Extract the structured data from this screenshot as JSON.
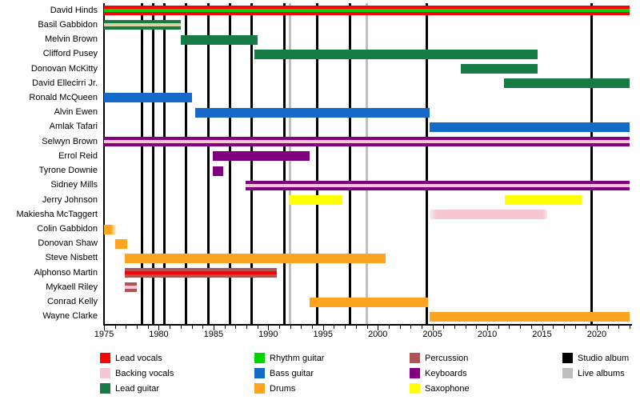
{
  "chart_data": {
    "type": "bar",
    "subtype": "band-member-timeline",
    "title": "",
    "x_axis": {
      "start": 1975,
      "end": 2023,
      "major_tick_years": [
        1975,
        1980,
        1985,
        1990,
        1995,
        2000,
        2005,
        2010,
        2015,
        2020
      ],
      "tick_labels": [
        "1975",
        "1980",
        "1985",
        "1990",
        "1995",
        "2000",
        "2005",
        "2010",
        "2015",
        "2020"
      ],
      "minor_tick_every_years": 1
    },
    "members": [
      {
        "name": "David Hinds",
        "roles": [
          "Lead vocals",
          "Rhythm guitar"
        ],
        "segments": [
          {
            "start": 1975,
            "end": 2023,
            "color": "#FF0000",
            "stripe": "#00D400"
          }
        ]
      },
      {
        "name": "Basil Gabbidon",
        "roles": [
          "Lead guitar",
          "Vocals"
        ],
        "segments": [
          {
            "start": 1975,
            "end": 1982,
            "color": "#177B45",
            "stripe": "#DBD2A4"
          }
        ]
      },
      {
        "name": "Melvin Brown",
        "roles": [
          "Lead guitar"
        ],
        "segments": [
          {
            "start": 1982,
            "end": 1989,
            "color": "#177B45"
          }
        ]
      },
      {
        "name": "Clifford Pusey",
        "roles": [
          "Lead guitar"
        ],
        "segments": [
          {
            "start": 1988.7,
            "end": 2014.6,
            "color": "#177B45"
          }
        ]
      },
      {
        "name": "Donovan McKitty",
        "roles": [
          "Lead guitar"
        ],
        "segments": [
          {
            "start": 2007.6,
            "end": 2014.6,
            "color": "#177B45"
          }
        ]
      },
      {
        "name": "David Ellecirri Jr.",
        "roles": [
          "Lead guitar"
        ],
        "segments": [
          {
            "start": 2011.5,
            "end": 2023,
            "color": "#177B45"
          }
        ]
      },
      {
        "name": "Ronald McQueen",
        "roles": [
          "Bass guitar"
        ],
        "segments": [
          {
            "start": 1975,
            "end": 1983,
            "color": "#1569C8"
          }
        ]
      },
      {
        "name": "Alvin Ewen",
        "roles": [
          "Bass guitar"
        ],
        "segments": [
          {
            "start": 1983.3,
            "end": 2004.7,
            "color": "#1569C8"
          }
        ]
      },
      {
        "name": "Amlak Tafari",
        "roles": [
          "Bass guitar"
        ],
        "segments": [
          {
            "start": 2004.7,
            "end": 2023,
            "color": "#1569C8"
          }
        ]
      },
      {
        "name": "Selwyn Brown",
        "roles": [
          "Keyboards",
          "Backing vocals"
        ],
        "segments": [
          {
            "start": 1975,
            "end": 2023,
            "color": "#800080",
            "stripe": "#F6C6D2"
          }
        ]
      },
      {
        "name": "Errol Reid",
        "roles": [
          "Keyboards"
        ],
        "segments": [
          {
            "start": 1984.9,
            "end": 1993.8,
            "color": "#800080"
          }
        ]
      },
      {
        "name": "Tyrone Downie",
        "roles": [
          "Keyboards"
        ],
        "segments": [
          {
            "start": 1984.9,
            "end": 1985.9,
            "color": "#800080"
          }
        ]
      },
      {
        "name": "Sidney Mills",
        "roles": [
          "Keyboards",
          "Backing vocals"
        ],
        "segments": [
          {
            "start": 1987.9,
            "end": 2023,
            "color": "#800080",
            "stripe": "#F6C6D2"
          }
        ]
      },
      {
        "name": "Jerry Johnson",
        "roles": [
          "Saxophone"
        ],
        "segments": [
          {
            "start": 1991.9,
            "end": 1996.8,
            "color": "#FFFF00"
          },
          {
            "start": 2011.6,
            "end": 2018.6,
            "color": "#FFFF00"
          }
        ]
      },
      {
        "name": "Makiesha McTaggert",
        "roles": [
          "Backing vocals"
        ],
        "segments": [
          {
            "start": 2004.7,
            "end": 2015.5,
            "color": "#F6C6D2",
            "fade": "left"
          }
        ]
      },
      {
        "name": "Colin Gabbidon",
        "roles": [
          "Drums"
        ],
        "segments": [
          {
            "start": 1975,
            "end": 1976.2,
            "color": "#FFA41E",
            "fade": "right"
          }
        ]
      },
      {
        "name": "Donovan Shaw",
        "roles": [
          "Drums"
        ],
        "segments": [
          {
            "start": 1976,
            "end": 1977.1,
            "color": "#FFA41E"
          }
        ]
      },
      {
        "name": "Steve Nisbett",
        "roles": [
          "Drums"
        ],
        "segments": [
          {
            "start": 1976.9,
            "end": 2000.7,
            "color": "#FFA41E"
          }
        ]
      },
      {
        "name": "Alphonso Martin",
        "roles": [
          "Percussion",
          "Vocals"
        ],
        "segments": [
          {
            "start": 1976.9,
            "end": 1990.8,
            "color": "#B05555",
            "stripe": "#FF0000"
          }
        ]
      },
      {
        "name": "Mykaell Riley",
        "roles": [
          "Percussion",
          "Backing vocals"
        ],
        "segments": [
          {
            "start": 1976.9,
            "end": 1978,
            "color": "#B05555",
            "stripe": "#F6C6D2"
          }
        ]
      },
      {
        "name": "Conrad Kelly",
        "roles": [
          "Drums"
        ],
        "segments": [
          {
            "start": 1993.8,
            "end": 2004.6,
            "color": "#FFA41E"
          }
        ]
      },
      {
        "name": "Wayne Clarke",
        "roles": [
          "Drums"
        ],
        "segments": [
          {
            "start": 2004.7,
            "end": 2023,
            "color": "#FFA41E"
          }
        ]
      }
    ],
    "albums": {
      "studio_years": [
        1978,
        1979,
        1980,
        1982,
        1984,
        1986,
        1988,
        1991,
        1994,
        1997,
        2004,
        2019
      ],
      "live_years": [
        1992,
        1999
      ]
    },
    "legend": {
      "columns": [
        [
          {
            "label": "Lead vocals",
            "color": "#FF0000"
          },
          {
            "label": "Backing vocals",
            "color": "#F6C6D2"
          },
          {
            "label": "Lead guitar",
            "color": "#177B45"
          }
        ],
        [
          {
            "label": "Rhythm guitar",
            "color": "#00D400"
          },
          {
            "label": "Bass guitar",
            "color": "#1569C8"
          },
          {
            "label": "Drums",
            "color": "#FFA41E"
          }
        ],
        [
          {
            "label": "Percussion",
            "color": "#B05555"
          },
          {
            "label": "Keyboards",
            "color": "#800080"
          },
          {
            "label": "Saxophone",
            "color": "#FFFF00"
          }
        ],
        [
          {
            "label": "Studio album",
            "color": "#000000"
          },
          {
            "label": "Live albums",
            "color": "#BFBFBF"
          }
        ]
      ]
    },
    "colors": {
      "studio_album_line": "#000000",
      "live_album_line": "#BFBFBF",
      "axis": "#000000",
      "background": "#FFFFFF"
    }
  }
}
